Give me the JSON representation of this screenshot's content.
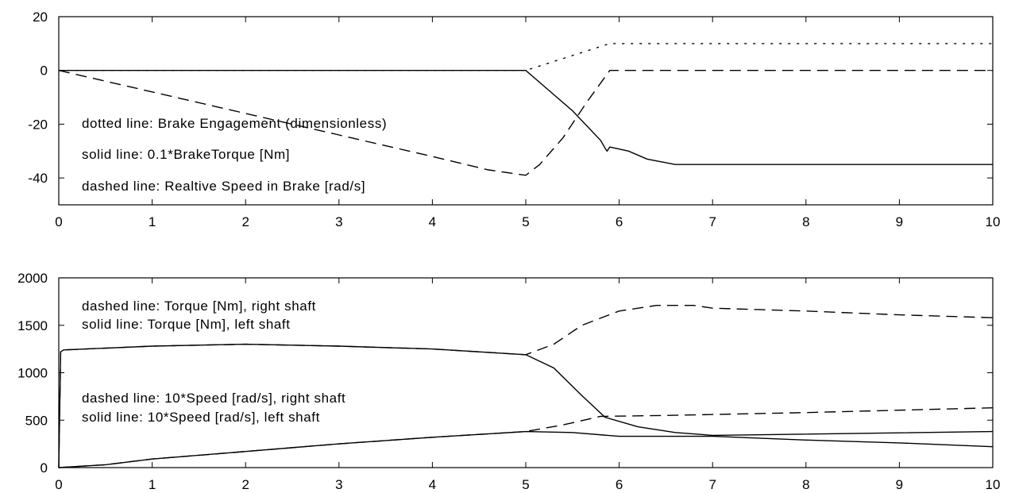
{
  "chart_data": [
    {
      "type": "line",
      "xlim": [
        0,
        10
      ],
      "ylim": [
        -50,
        20
      ],
      "x_ticks": [
        0,
        1,
        2,
        3,
        4,
        5,
        6,
        7,
        8,
        9,
        10
      ],
      "y_ticks": [
        -40,
        -20,
        0,
        20
      ],
      "grid": false,
      "annotations": [
        "dotted line: Brake Engagement (dimensionless)",
        "solid line: 0.1*BrakeTorque [Nm]",
        "dashed line: Realtive Speed in Brake [rad/s]"
      ],
      "series": [
        {
          "style": "dotted",
          "x": [
            0,
            5,
            5.9,
            10
          ],
          "y": [
            0,
            0,
            10,
            10
          ]
        },
        {
          "style": "solid",
          "x": [
            0,
            5,
            5.2,
            5.5,
            5.8,
            5.85,
            5.87,
            5.9,
            6.1,
            6.3,
            6.6,
            7,
            10
          ],
          "y": [
            0,
            0,
            -6,
            -15,
            -26,
            -29,
            -30,
            -28.5,
            -30,
            -33,
            -35,
            -35,
            -35
          ]
        },
        {
          "style": "dashed",
          "x": [
            0,
            1,
            2,
            3,
            4,
            4.6,
            5,
            5.15,
            5.4,
            5.65,
            5.9,
            6.5,
            10
          ],
          "y": [
            0,
            -8,
            -16,
            -24,
            -32,
            -37,
            -39,
            -35,
            -25,
            -12,
            0,
            0,
            0
          ]
        }
      ]
    },
    {
      "type": "line",
      "xlim": [
        0,
        10
      ],
      "ylim": [
        0,
        2000
      ],
      "x_ticks": [
        0,
        1,
        2,
        3,
        4,
        5,
        6,
        7,
        8,
        9,
        10
      ],
      "y_ticks": [
        0,
        500,
        1000,
        1500,
        2000
      ],
      "grid": false,
      "annotations": [
        "dashed line: Torque [Nm], right shaft",
        "solid line: Torque [Nm], left shaft",
        "dashed line: 10*Speed [rad/s], right shaft",
        "solid line: 10*Speed [rad/s], left shaft"
      ],
      "series": [
        {
          "style": "dashed",
          "x": [
            0,
            0.02,
            0.05,
            1,
            2,
            3,
            4,
            5,
            5.3,
            5.6,
            6,
            6.4,
            6.8,
            7,
            8,
            9,
            10
          ],
          "y": [
            0,
            1220,
            1240,
            1280,
            1300,
            1280,
            1250,
            1190,
            1300,
            1500,
            1650,
            1710,
            1710,
            1680,
            1650,
            1610,
            1580
          ]
        },
        {
          "style": "solid",
          "x": [
            0,
            0.02,
            0.05,
            1,
            2,
            3,
            4,
            5,
            5.3,
            5.6,
            5.85,
            6.2,
            6.6,
            7,
            10
          ],
          "y": [
            0,
            1220,
            1240,
            1280,
            1300,
            1280,
            1250,
            1190,
            1050,
            760,
            530,
            430,
            370,
            340,
            380
          ]
        },
        {
          "style": "dashed",
          "x": [
            0,
            0.5,
            1,
            2,
            3,
            4,
            5,
            5.4,
            5.8,
            6.5,
            8,
            10
          ],
          "y": [
            0,
            30,
            90,
            170,
            250,
            320,
            380,
            450,
            540,
            550,
            580,
            630
          ]
        },
        {
          "style": "solid",
          "x": [
            0,
            0.5,
            1,
            2,
            3,
            4,
            5,
            5.5,
            6,
            7,
            8,
            9,
            10
          ],
          "y": [
            0,
            30,
            90,
            170,
            250,
            320,
            380,
            370,
            330,
            330,
            290,
            260,
            220
          ]
        }
      ]
    }
  ]
}
